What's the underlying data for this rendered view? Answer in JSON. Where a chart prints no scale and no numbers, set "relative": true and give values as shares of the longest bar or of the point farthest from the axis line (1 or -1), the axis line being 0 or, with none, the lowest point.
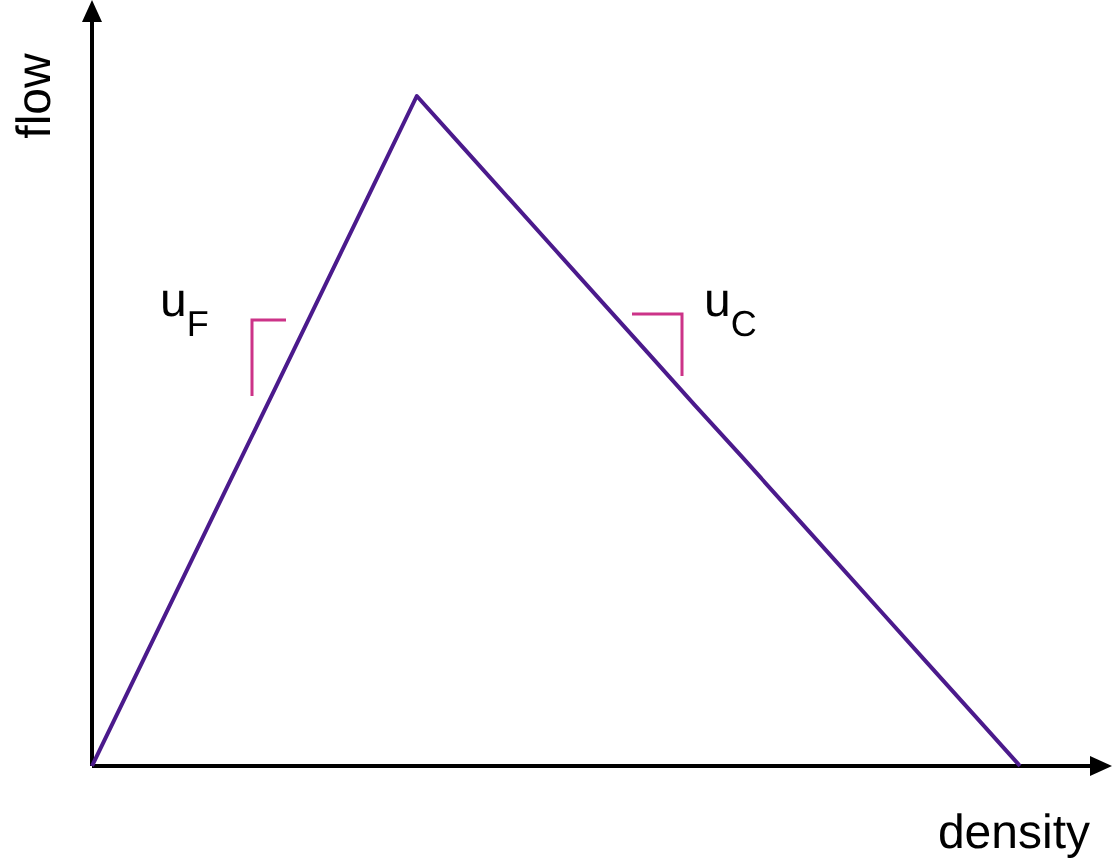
{
  "chart_data": {
    "type": "line",
    "relative": true,
    "xlabel": "density",
    "ylabel": "flow",
    "annotations": [
      "u$_{F}$",
      "u$_{C}$"
    ],
    "categories": [
      null,
      null,
      null,
      null,
      null,
      null,
      null,
      null,
      null,
      null,
      null,
      null,
      null,
      null,
      null,
      null,
      null,
      null,
      null,
      null,
      null
    ],
    "series": [
      {
        "color": "#4b1a8c",
        "values": [
          0,
          0.143,
          0.286,
          0.429,
          0.571,
          0.714,
          0.857,
          1,
          0.923,
          0.846,
          0.769,
          0.692,
          0.615,
          0.538,
          0.462,
          0.385,
          0.308,
          0.231,
          0.154,
          0.077,
          0
        ]
      }
    ]
  }
}
